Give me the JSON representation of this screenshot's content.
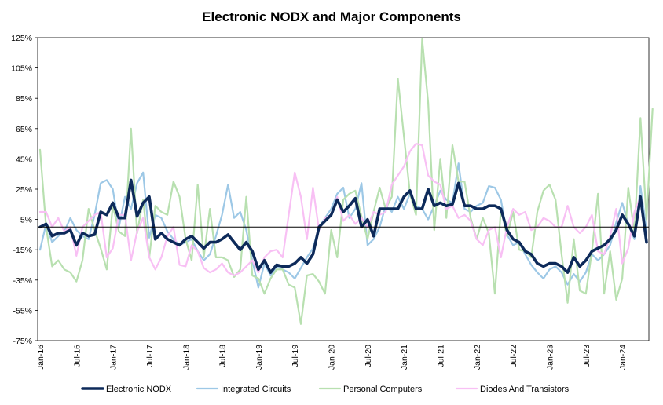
{
  "chart_data": {
    "type": "line",
    "title": "Electronic NODX and Major Components",
    "xlabel": "",
    "ylabel": "",
    "ylim": [
      -75,
      125
    ],
    "y_ticks": [
      "125%",
      "105%",
      "85%",
      "65%",
      "45%",
      "25%",
      "5%",
      "-15%",
      "-35%",
      "-55%",
      "-75%"
    ],
    "y_tick_values": [
      125,
      105,
      85,
      65,
      45,
      25,
      5,
      -15,
      -35,
      -55,
      -75
    ],
    "x_tick_labels": [
      "Jan-16",
      "Jul-16",
      "Jan-17",
      "Jul-17",
      "Jan-18",
      "Jul-18",
      "Jan-19",
      "Jul-19",
      "Jan-20",
      "Jul-20",
      "Jan-21",
      "Jul-21",
      "Jan-22",
      "Jul-22",
      "Jan-23",
      "Jul-23",
      "Jan-24"
    ],
    "x_start": "Jan-16",
    "x_end": "Sep-24",
    "grid": false,
    "legend_position": "bottom",
    "series": [
      {
        "name": "Integrated Circuits",
        "color": "#9dc8e6",
        "width": 2.2,
        "values": [
          -15,
          2,
          -10,
          -6,
          -3,
          6,
          -2,
          -6,
          -8,
          8,
          29,
          31,
          25,
          0,
          20,
          12,
          29,
          36,
          -7,
          8,
          6,
          -3,
          -8,
          -12,
          -10,
          -8,
          -16,
          -22,
          -18,
          -6,
          8,
          28,
          6,
          10,
          -2,
          -22,
          -40,
          -24,
          -32,
          -26,
          -28,
          -30,
          -34,
          -27,
          -20,
          -14,
          0,
          6,
          12,
          22,
          26,
          6,
          12,
          29,
          -12,
          -8,
          0,
          14,
          10,
          20,
          12,
          22,
          14,
          12,
          5,
          14,
          24,
          18,
          16,
          42,
          12,
          10,
          14,
          16,
          27,
          26,
          18,
          -5,
          -12,
          -10,
          -18,
          -25,
          -30,
          -34,
          -28,
          -26,
          -30,
          -38,
          -31,
          -36,
          -30,
          -18,
          -22,
          -18,
          -12,
          3,
          16,
          2,
          -8,
          27,
          -2
        ]
      },
      {
        "name": "Personal Computers",
        "color": "#b8e0b0",
        "width": 2.2,
        "values": [
          51,
          0,
          -26,
          -22,
          -28,
          -30,
          -36,
          -22,
          12,
          -2,
          -14,
          -28,
          14,
          -3,
          -6,
          65,
          -4,
          18,
          -20,
          14,
          10,
          8,
          30,
          20,
          -8,
          -22,
          28,
          -20,
          12,
          -20,
          -20,
          -22,
          -33,
          -28,
          20,
          -32,
          -34,
          -44,
          -34,
          -28,
          -28,
          -38,
          -40,
          -64,
          -32,
          -31,
          -36,
          -44,
          -2,
          -20,
          18,
          22,
          24,
          7,
          -8,
          10,
          26,
          12,
          20,
          98,
          60,
          22,
          8,
          124,
          82,
          -2,
          45,
          6,
          54,
          30,
          30,
          6,
          -8,
          6,
          -4,
          -44,
          12,
          -6,
          10,
          -15,
          -16,
          -20,
          10,
          24,
          28,
          18,
          -18,
          -50,
          -8,
          -42,
          -44,
          -16,
          22,
          -44,
          -16,
          -48,
          -34,
          26,
          -4,
          72,
          5,
          78
        ]
      },
      {
        "name": "Diodes And Transistors",
        "color": "#f8c0f4",
        "width": 2.2,
        "values": [
          10,
          10,
          0,
          6,
          -3,
          0,
          -19,
          0,
          4,
          8,
          10,
          -20,
          -14,
          8,
          8,
          -22,
          -3,
          6,
          -20,
          -28,
          -20,
          -6,
          0,
          -25,
          -26,
          -12,
          -16,
          -27,
          -30,
          -28,
          -24,
          -30,
          -32,
          -30,
          -26,
          -22,
          -30,
          -20,
          -16,
          -15,
          -20,
          8,
          36,
          20,
          -8,
          26,
          -2,
          6,
          8,
          20,
          4,
          8,
          2,
          6,
          0,
          10,
          8,
          10,
          28,
          34,
          40,
          50,
          55,
          54,
          34,
          30,
          28,
          12,
          14,
          6,
          8,
          4,
          -8,
          -12,
          -2,
          0,
          -20,
          0,
          12,
          8,
          10,
          -2,
          0,
          6,
          4,
          0,
          0,
          14,
          0,
          -4,
          0,
          8,
          -16,
          -18,
          -6,
          12,
          -24,
          -14,
          10,
          20,
          -8
        ]
      },
      {
        "name": "Electronic NODX",
        "color": "#0d2a5a",
        "width": 3.6,
        "values": [
          0,
          2,
          -6,
          -4,
          -4,
          -2,
          -12,
          -4,
          -6,
          -5,
          10,
          8,
          16,
          6,
          6,
          31,
          7,
          16,
          20,
          -8,
          -4,
          -8,
          -10,
          -12,
          -8,
          -6,
          -10,
          -14,
          -10,
          -10,
          -8,
          -5,
          -10,
          -15,
          -10,
          -16,
          -28,
          -22,
          -30,
          -25,
          -26,
          -26,
          -24,
          -20,
          -24,
          -18,
          0,
          4,
          8,
          18,
          10,
          14,
          19,
          0,
          5,
          -6,
          12,
          12,
          12,
          12,
          20,
          24,
          12,
          12,
          25,
          14,
          16,
          14,
          15,
          29,
          14,
          14,
          12,
          12,
          14,
          14,
          12,
          -2,
          -8,
          -10,
          -16,
          -18,
          -24,
          -26,
          -24,
          -24,
          -26,
          -30,
          -20,
          -26,
          -22,
          -16,
          -14,
          -12,
          -8,
          -2,
          8,
          2,
          -6,
          20,
          -10
        ]
      }
    ],
    "legend": [
      {
        "name": "Electronic NODX",
        "color": "#0d2a5a"
      },
      {
        "name": "Integrated Circuits",
        "color": "#9dc8e6"
      },
      {
        "name": "Personal Computers",
        "color": "#b8e0b0"
      },
      {
        "name": "Diodes And Transistors",
        "color": "#f8c0f4"
      }
    ]
  }
}
